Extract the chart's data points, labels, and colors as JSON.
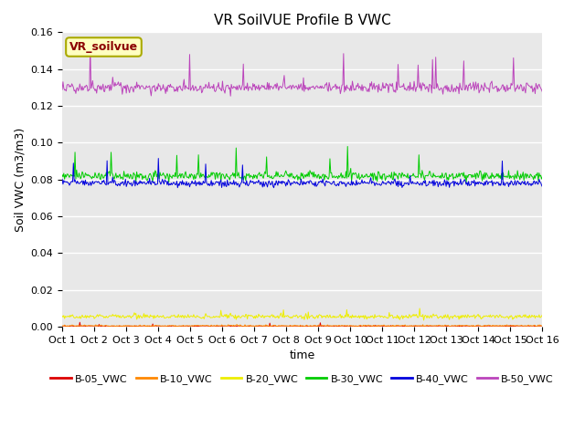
{
  "title": "VR SoilVUE Profile B VWC",
  "xlabel": "time",
  "ylabel": "Soil VWC (m3/m3)",
  "ylim": [
    0.0,
    0.16
  ],
  "yticks": [
    0.0,
    0.02,
    0.04,
    0.06,
    0.08,
    0.1,
    0.12,
    0.14,
    0.16
  ],
  "x_labels": [
    "Oct 1",
    "Oct 2",
    "Oct 3",
    "Oct 4",
    "Oct 5",
    "Oct 6",
    "Oct 7",
    "Oct 8",
    "Oct 9",
    "Oct 10",
    "Oct 11",
    "Oct 12",
    "Oct 13",
    "Oct 14",
    "Oct 15",
    "Oct 16"
  ],
  "n_days": 15,
  "n_points": 600,
  "series": {
    "B-05_VWC": {
      "color": "#dd0000",
      "base": 0.0,
      "noise": 0.0002,
      "spike_prob": 0.005,
      "spike_amp": 0.001
    },
    "B-10_VWC": {
      "color": "#ff8800",
      "base": 0.0005,
      "noise": 0.0002,
      "spike_prob": 0.005,
      "spike_amp": 0.001
    },
    "B-20_VWC": {
      "color": "#eeee00",
      "base": 0.0055,
      "noise": 0.0006,
      "spike_prob": 0.02,
      "spike_amp": 0.002
    },
    "B-30_VWC": {
      "color": "#00cc00",
      "base": 0.082,
      "noise": 0.0012,
      "spike_prob": 0.015,
      "spike_amp": 0.008
    },
    "B-40_VWC": {
      "color": "#0000dd",
      "base": 0.078,
      "noise": 0.001,
      "spike_prob": 0.015,
      "spike_amp": 0.007
    },
    "B-50_VWC": {
      "color": "#bb44bb",
      "base": 0.13,
      "noise": 0.0015,
      "spike_prob": 0.02,
      "spike_amp": 0.01
    }
  },
  "watermark_text": "VR_soilvue",
  "watermark_color": "#8b0000",
  "watermark_bg": "#ffffc0",
  "watermark_border": "#aaaa00",
  "bg_color": "#e8e8e8",
  "grid_color": "#ffffff",
  "title_fontsize": 11,
  "label_fontsize": 9,
  "tick_fontsize": 8
}
